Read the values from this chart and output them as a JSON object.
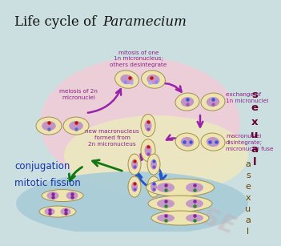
{
  "title_normal": "Life cycle of ",
  "title_italic": "Paramecium",
  "bg_color": "#ccdfe0",
  "sexual_bg_color": "#f0cdd8",
  "asexual_bg_color": "#ede8c0",
  "blue_bg_color": "#a8ccd8",
  "sexual_label": "s\ne\nx\nu\na\nl",
  "asexual_label": "a\ns\ne\nx\nu\na\nl",
  "watermark": "NEASE",
  "labels": {
    "top": "mitosis of one\n1n micronucleus;\nothers desintegrate",
    "left_upper": "meiosis of 2n\nmicronuclei",
    "right_upper": "exchange of\n1n micronuclei",
    "middle": "new macronucleus\nformed from\n2n micronucleus",
    "right_lower": "macronuclei\ndisintegrate;\nmicronuclei fuse",
    "left_lower1": "conjugation",
    "left_lower2": "mitotic fission"
  },
  "label_color_purple": "#882288",
  "arrow_color_purple": "#9922aa",
  "arrow_color_green": "#117711",
  "arrow_color_blue": "#2255cc",
  "cell_fill": "#eee4b0",
  "cell_edge": "#a09050",
  "nucleus_large_color": "#bb88cc",
  "nucleus_small_red": "#cc1100",
  "nucleus_small_blue": "#3355dd",
  "nucleus_small_purple": "#882299",
  "nucleus_small_green": "#228833"
}
